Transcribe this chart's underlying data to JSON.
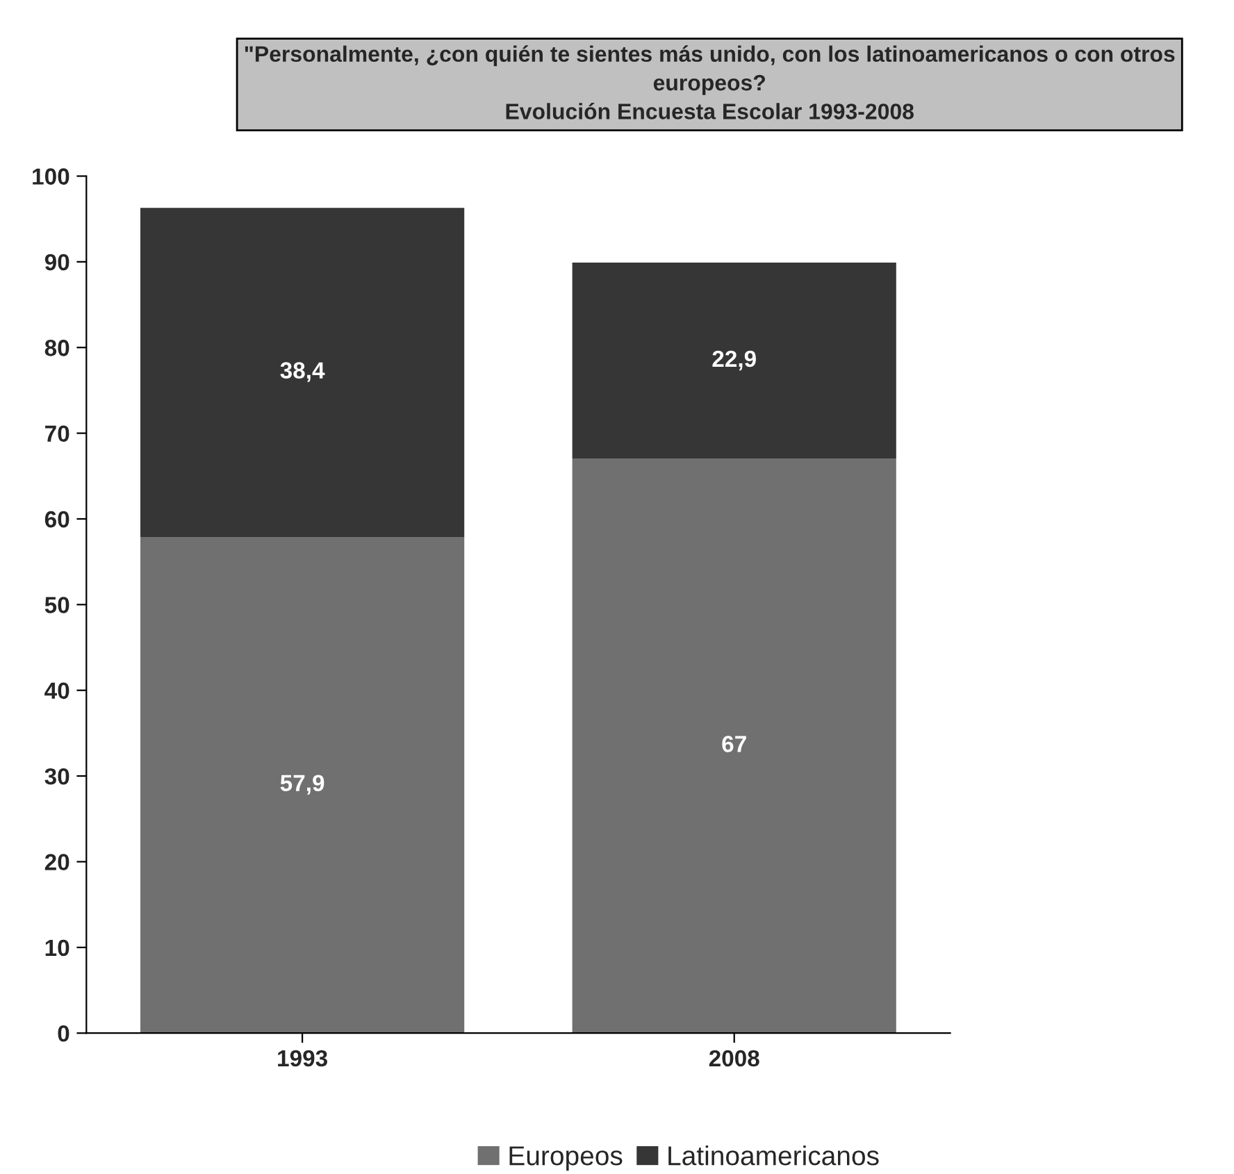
{
  "chart_data": {
    "type": "bar",
    "stacked": true,
    "title": "\"Personalmente, ¿con quién te sientes más unido, con los latinoamericanos o con otros europeos?",
    "subtitle": "Evolución Encuesta Escolar 1993-2008",
    "categories": [
      "1993",
      "2008"
    ],
    "series": [
      {
        "name": "Europeos",
        "color": "#707070",
        "values": [
          57.9,
          67
        ],
        "value_labels": [
          "57,9",
          "67"
        ]
      },
      {
        "name": "Latinoamericanos",
        "color": "#363636",
        "values": [
          38.4,
          22.9
        ],
        "value_labels": [
          "38,4",
          "22,9"
        ]
      }
    ],
    "ylim": [
      0,
      100
    ],
    "yticks": [
      0,
      10,
      20,
      30,
      40,
      50,
      60,
      70,
      80,
      90,
      100
    ],
    "grid": false,
    "legend": "bottom"
  }
}
